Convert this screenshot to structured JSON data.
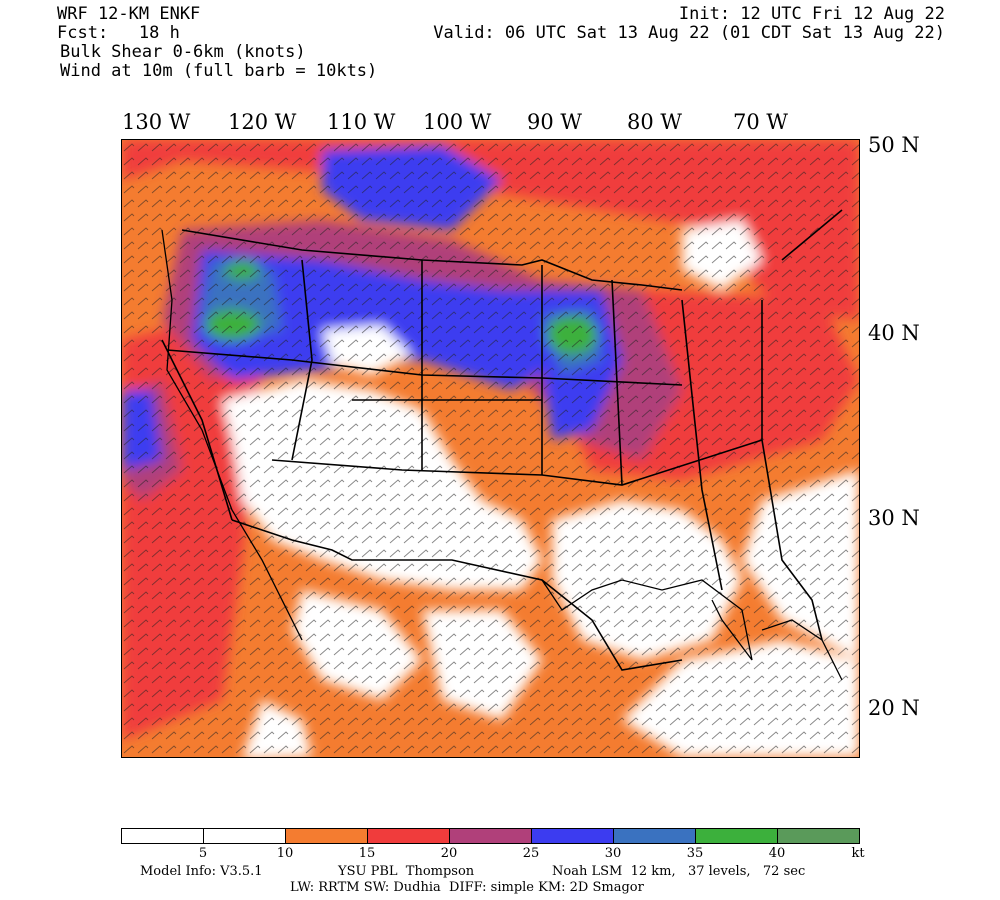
{
  "header": {
    "model": "WRF 12-KM ENKF",
    "fcst": "Fcst:   18 h",
    "field1": "Bulk Shear 0-6km (knots)",
    "field2": "Wind at 10m (full barb = 10kts)",
    "init": "Init: 12 UTC Fri 12 Aug 22",
    "valid": "Valid: 06 UTC Sat 13 Aug 22 (01 CDT Sat 13 Aug 22)"
  },
  "map": {
    "lon_labels": [
      "130 W",
      "120 W",
      "110 W",
      "100 W",
      "90 W",
      "80 W",
      "70 W"
    ],
    "lat_labels": [
      "50 N",
      "40 N",
      "30 N",
      "20 N"
    ]
  },
  "colorbar": {
    "colors": [
      "#ffffff",
      "#ffffff",
      "#f47c30",
      "#f03c3c",
      "#b0407a",
      "#3c3cf0",
      "#3a72c0",
      "#3cb03c",
      "#5a9a5a"
    ],
    "ticks": [
      "5",
      "10",
      "15",
      "20",
      "25",
      "30",
      "35",
      "40"
    ],
    "unit": "kt"
  },
  "footer": {
    "line1a": "Model Info: V3.5.1",
    "line1b": "YSU PBL  Thompson",
    "line1c": "Noah LSM  12 km,   37 levels,   72 sec",
    "line2": "LW: RRTM SW: Dudhia  DIFF: simple KM: 2D Smagor"
  }
}
